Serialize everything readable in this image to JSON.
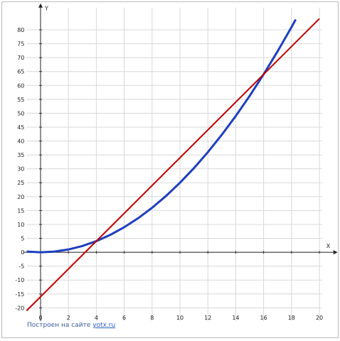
{
  "chart_data": {
    "type": "line",
    "x_label": "X",
    "y_label": "Y",
    "xlim": [
      -1,
      20.8
    ],
    "ylim": [
      -21.7,
      88
    ],
    "xticks": [
      0,
      2,
      4,
      6,
      8,
      10,
      12,
      14,
      16,
      18,
      20
    ],
    "yticks": [
      -20,
      -15,
      -10,
      -5,
      0,
      5,
      10,
      15,
      20,
      25,
      30,
      35,
      40,
      45,
      50,
      55,
      60,
      65,
      70,
      75,
      80
    ],
    "grid": true,
    "series": [
      {
        "color": "#1f3fbf",
        "x": [
          -1,
          0,
          1,
          2,
          3,
          4,
          5,
          6,
          7,
          8,
          9,
          10,
          11,
          12,
          13,
          14,
          15,
          16,
          17,
          18,
          18.3
        ],
        "values": [
          0.25,
          0,
          0.25,
          1,
          2.25,
          4,
          6.25,
          9,
          12.25,
          16,
          20.25,
          25,
          30.25,
          36,
          42.25,
          49,
          56.25,
          64,
          72.25,
          81,
          83.72
        ]
      },
      {
        "color": "#c00000",
        "x": [
          -1,
          20
        ],
        "values": [
          -21,
          84
        ]
      }
    ]
  },
  "footer": {
    "text": "Построен на сайте",
    "link": "yotx.ru"
  }
}
